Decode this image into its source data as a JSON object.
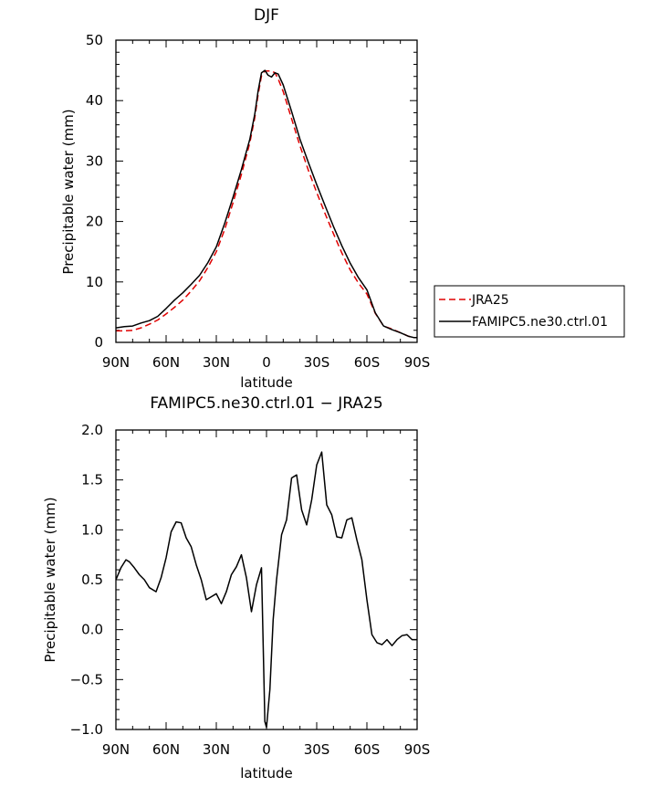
{
  "chart_data": [
    {
      "type": "line",
      "title": "DJF",
      "xlabel": "latitude",
      "ylabel": "Precipitable water (mm)",
      "x_tick_labels": [
        "90N",
        "60N",
        "30N",
        "0",
        "30S",
        "60S",
        "90S"
      ],
      "x_tick_values": [
        90,
        60,
        30,
        0,
        -30,
        -60,
        -90
      ],
      "y_tick_labels": [
        "0",
        "10",
        "20",
        "30",
        "40",
        "50"
      ],
      "xlim": [
        90,
        -90
      ],
      "ylim": [
        0,
        50
      ],
      "legend_position": "right",
      "series": [
        {
          "name": "JRA25",
          "color": "#e00000",
          "dash": "dashed",
          "x": [
            90,
            85,
            80,
            75,
            70,
            65,
            60,
            55,
            50,
            45,
            40,
            35,
            30,
            25,
            20,
            15,
            10,
            7,
            5,
            3,
            1,
            -1,
            -3,
            -5,
            -7,
            -10,
            -15,
            -20,
            -25,
            -30,
            -35,
            -40,
            -45,
            -50,
            -55,
            -60,
            -65,
            -70,
            -75,
            -80,
            -85,
            -88,
            -90
          ],
          "y": [
            1.9,
            1.9,
            2.0,
            2.4,
            3.0,
            3.7,
            4.7,
            5.8,
            7.0,
            8.5,
            10.2,
            12.4,
            15.0,
            18.7,
            23.1,
            27.8,
            33.0,
            37.2,
            41.0,
            44.1,
            44.9,
            44.9,
            44.9,
            44.6,
            43.6,
            41.5,
            37.0,
            32.5,
            28.5,
            24.8,
            21.3,
            18.0,
            14.8,
            12.0,
            9.8,
            8.0,
            4.8,
            2.7,
            2.2,
            1.6,
            1.0,
            0.8,
            0.8
          ]
        },
        {
          "name": "FAMIPC5.ne30.ctrl.01",
          "color": "#000000",
          "dash": "solid",
          "x": [
            90,
            85,
            80,
            75,
            70,
            65,
            60,
            55,
            50,
            45,
            40,
            35,
            30,
            25,
            20,
            15,
            10,
            7,
            5,
            3,
            1,
            -1,
            -3,
            -5,
            -7,
            -10,
            -15,
            -20,
            -25,
            -30,
            -35,
            -40,
            -45,
            -50,
            -55,
            -60,
            -65,
            -70,
            -75,
            -80,
            -85,
            -88,
            -90
          ],
          "y": [
            2.4,
            2.6,
            2.7,
            3.2,
            3.6,
            4.3,
            5.6,
            7.0,
            8.2,
            9.6,
            11.1,
            13.2,
            15.8,
            19.7,
            24.0,
            28.6,
            33.6,
            37.8,
            41.6,
            44.6,
            45.0,
            44.2,
            43.9,
            44.6,
            44.4,
            42.6,
            38.2,
            33.6,
            29.8,
            26.1,
            22.6,
            19.2,
            16.0,
            13.1,
            10.7,
            8.7,
            4.9,
            2.7,
            2.1,
            1.6,
            1.0,
            0.8,
            0.8
          ]
        }
      ]
    },
    {
      "type": "line",
      "title": "FAMIPC5.ne30.ctrl.01 − JRA25",
      "xlabel": "latitude",
      "ylabel": "Precipitable water (mm)",
      "x_tick_labels": [
        "90N",
        "60N",
        "30N",
        "0",
        "30S",
        "60S",
        "90S"
      ],
      "x_tick_values": [
        90,
        60,
        30,
        0,
        -30,
        -60,
        -90
      ],
      "y_tick_labels": [
        "−1.0",
        "−0.5",
        "0.0",
        "0.5",
        "1.0",
        "1.5",
        "2.0"
      ],
      "xlim": [
        90,
        -90
      ],
      "ylim": [
        -1.0,
        2.0
      ],
      "series": [
        {
          "color": "#000000",
          "dash": "solid",
          "x": [
            90,
            87,
            84,
            82,
            79,
            76,
            73,
            70,
            66,
            63,
            60,
            57,
            54,
            51,
            48,
            45,
            42,
            39,
            36,
            33,
            30,
            27,
            24,
            21,
            18,
            15,
            12,
            9,
            6,
            3,
            1,
            0,
            -2,
            -4,
            -6,
            -9,
            -12,
            -15,
            -18,
            -21,
            -24,
            -27,
            -30,
            -33,
            -36,
            -39,
            -42,
            -45,
            -48,
            -51,
            -54,
            -57,
            -60,
            -63,
            -66,
            -69,
            -72,
            -75,
            -78,
            -81,
            -84,
            -87,
            -90
          ],
          "y": [
            0.5,
            0.62,
            0.7,
            0.68,
            0.62,
            0.55,
            0.5,
            0.42,
            0.38,
            0.52,
            0.72,
            0.98,
            1.08,
            1.07,
            0.92,
            0.83,
            0.65,
            0.5,
            0.3,
            0.33,
            0.36,
            0.26,
            0.38,
            0.55,
            0.63,
            0.75,
            0.52,
            0.18,
            0.45,
            0.62,
            -0.92,
            -0.98,
            -0.6,
            0.1,
            0.5,
            0.95,
            1.1,
            1.52,
            1.55,
            1.2,
            1.05,
            1.3,
            1.65,
            1.78,
            1.25,
            1.15,
            0.93,
            0.92,
            1.1,
            1.12,
            0.9,
            0.7,
            0.3,
            -0.05,
            -0.13,
            -0.15,
            -0.1,
            -0.16,
            -0.1,
            -0.06,
            -0.05,
            -0.1,
            -0.1
          ]
        }
      ]
    }
  ]
}
